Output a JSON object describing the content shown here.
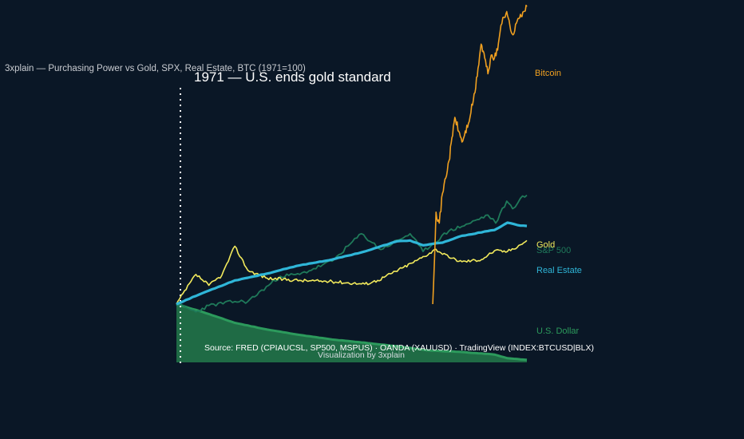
{
  "chart_data": {
    "type": "line",
    "title": "3xplain — Purchasing Power vs Gold, SPX, Real Estate, BTC (1971=100)",
    "annotation": "1971 — U.S. ends gold standard",
    "source": "Source: FRED (CPIAUCSL, SP500, MSPUS) · OANDA (XAUUSD) · TradingView (INDEX:BTCUSD|BLX)",
    "credit": "Visualization by 3xplain",
    "x_range": [
      1971,
      2025
    ],
    "y_scale": "log",
    "grid": false,
    "legend": "end-of-line labels",
    "series": [
      {
        "name": "Bitcoin",
        "color": "#f0a020",
        "x": [
          2010.5,
          2011,
          2011.5,
          2012,
          2013,
          2013.9,
          2014.5,
          2015,
          2016,
          2017,
          2017.95,
          2018.5,
          2019,
          2019.5,
          2020,
          2020.5,
          2021,
          2021.3,
          2021.9,
          2022.5,
          2023,
          2023.5,
          2024,
          2024.5,
          2025
        ],
        "y": [
          100,
          3000,
          2000,
          6000,
          20000,
          100000,
          60000,
          40000,
          80000,
          250000,
          1500000,
          900000,
          500000,
          1000000,
          900000,
          1200000,
          3000000,
          4000000,
          5000000,
          2500000,
          2200000,
          3500000,
          4500000,
          5000000,
          6000000
        ]
      },
      {
        "name": "Gold",
        "color": "#f2ea5c",
        "x": [
          1971,
          1974,
          1976,
          1978,
          1980,
          1982,
          1985,
          1990,
          1995,
          2000,
          2002,
          2006,
          2008,
          2011,
          2013,
          2015,
          2018,
          2020,
          2022,
          2024,
          2025
        ],
        "y": [
          100,
          300,
          200,
          290,
          850,
          350,
          260,
          240,
          230,
          210,
          240,
          390,
          500,
          760,
          560,
          480,
          520,
          720,
          700,
          900,
          1050
        ]
      },
      {
        "name": "S&P 500",
        "color": "#1f7a5a",
        "x": [
          1971,
          1974,
          1976,
          1980,
          1982,
          1987,
          1990,
          1995,
          1999.5,
          2002.5,
          2007,
          2009,
          2013,
          2016,
          2019,
          2020.2,
          2021.9,
          2022.8,
          2024,
          2025
        ],
        "y": [
          100,
          75,
          95,
          110,
          110,
          280,
          300,
          490,
          1350,
          750,
          1350,
          700,
          1500,
          1950,
          2700,
          2000,
          4500,
          3400,
          5000,
          5600
        ]
      },
      {
        "name": "Real Estate",
        "color": "#2fb6d8",
        "x": [
          1971,
          1975,
          1980,
          1985,
          1990,
          1995,
          2000,
          2005,
          2007,
          2009,
          2012,
          2015,
          2020,
          2022,
          2024,
          2025
        ],
        "y": [
          100,
          150,
          240,
          310,
          420,
          520,
          700,
          1020,
          1050,
          880,
          970,
          1250,
          1550,
          2030,
          1820,
          1800
        ]
      },
      {
        "name": "U.S. Dollar",
        "color": "#2c9a5c",
        "x": [
          1971,
          1975,
          1980,
          1985,
          1990,
          1995,
          2000,
          2005,
          2010,
          2015,
          2020,
          2022,
          2025
        ],
        "y": [
          100,
          75,
          50,
          39,
          32,
          27,
          24,
          21,
          18,
          17,
          15.5,
          13.5,
          12.7
        ]
      }
    ]
  },
  "labels": {
    "bitcoin": "Bitcoin",
    "gold": "Gold",
    "sp500": "S&P 500",
    "real_estate": "Real Estate",
    "dollar": "U.S. Dollar"
  }
}
